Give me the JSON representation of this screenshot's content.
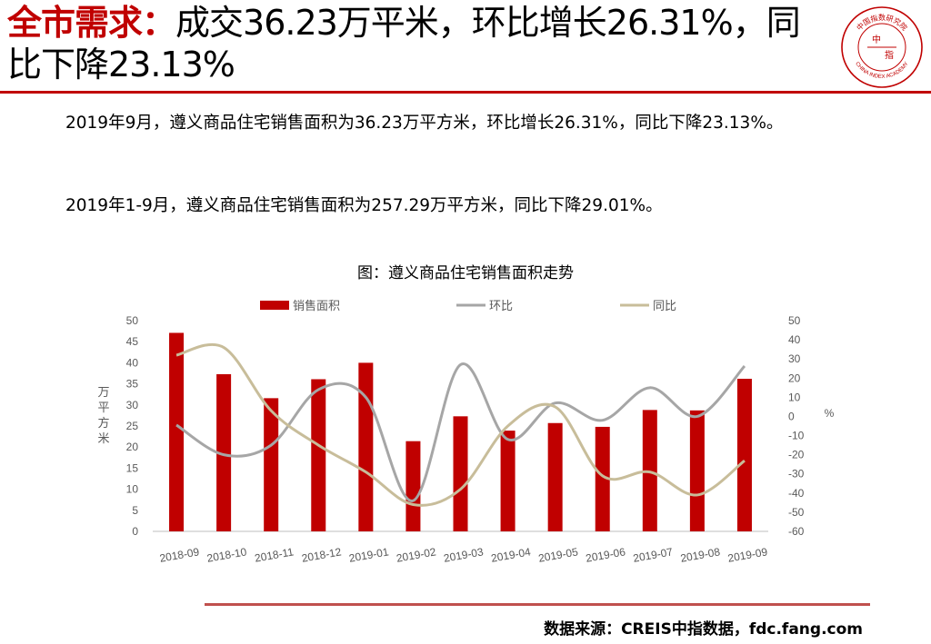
{
  "header": {
    "highlight": "全市需求：",
    "title_rest": "成交36.23万平米，环比增长26.31%，同比下降23.13%"
  },
  "logo": {
    "center_text_1": "中",
    "center_text_2": "指",
    "top_text": "中国指数研究院",
    "bottom_text": "CHINA INDEX ACADEMY",
    "color": "#c00000"
  },
  "body": {
    "paragraph_1": "2019年9月，遵义商品住宅销售面积为36.23万平方米，环比增长26.31%，同比下降23.13%。",
    "paragraph_2": "2019年1-9月，遵义商品住宅销售面积为257.29万平方米，同比下降29.01%。"
  },
  "chart_data": {
    "type": "bar",
    "title": "图：遵义商品住宅销售面积走势",
    "categories": [
      "2018-09",
      "2018-10",
      "2018-11",
      "2018-12",
      "2019-01",
      "2019-02",
      "2019-03",
      "2019-04",
      "2019-05",
      "2019-06",
      "2019-07",
      "2019-08",
      "2019-09"
    ],
    "series": [
      {
        "name": "销售面积",
        "kind": "bar",
        "axis": "left",
        "color": "#c00000",
        "values": [
          47.1,
          37.3,
          31.6,
          36.1,
          40.0,
          21.4,
          27.3,
          23.9,
          25.7,
          24.8,
          28.8,
          28.7,
          36.2
        ]
      },
      {
        "name": "环比",
        "kind": "line",
        "axis": "right",
        "color": "#a6a6a6",
        "values": [
          -4.5,
          -20,
          -15,
          14,
          10,
          -44,
          27,
          -12,
          7,
          -2,
          15,
          0,
          26.3
        ]
      },
      {
        "name": "同比",
        "kind": "line",
        "axis": "right",
        "color": "#c8bd9a",
        "values": [
          32,
          36,
          3,
          -15,
          -29,
          -46,
          -38,
          -5,
          5,
          -31,
          -29,
          -41,
          -23.1
        ]
      }
    ],
    "ylabel_left": "万平方米",
    "ylabel_right": "%",
    "ylim_left": [
      0,
      50
    ],
    "yticks_left": [
      0,
      5,
      10,
      15,
      20,
      25,
      30,
      35,
      40,
      45,
      50
    ],
    "ylim_right": [
      -60,
      50
    ],
    "yticks_right": [
      -60,
      -50,
      -40,
      -30,
      -20,
      -10,
      0,
      10,
      20,
      30,
      40,
      50
    ],
    "legend_position": "top",
    "grid": false
  },
  "footer": {
    "source": "数据来源：CREIS中指数据，fdc.fang.com"
  }
}
